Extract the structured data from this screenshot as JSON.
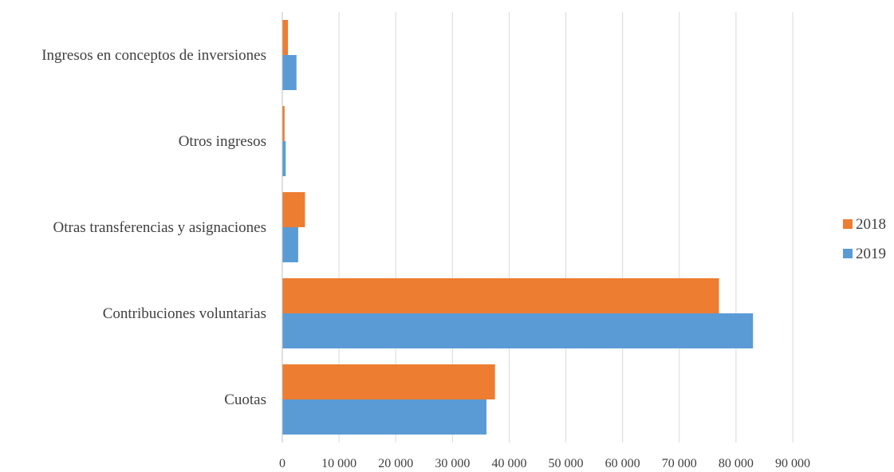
{
  "chart_data": {
    "type": "bar",
    "orientation": "horizontal",
    "title": "",
    "xlabel": "",
    "ylabel": "",
    "categories": [
      "Ingresos en conceptos de inversiones",
      "Otros ingresos",
      "Otras transferencias y asignaciones",
      "Contribuciones voluntarias",
      "Cuotas"
    ],
    "series": [
      {
        "name": "2018",
        "color": "#ED7D31",
        "values": [
          1000,
          400,
          4000,
          77000,
          37500
        ]
      },
      {
        "name": "2019",
        "color": "#5B9BD5",
        "values": [
          2500,
          600,
          2800,
          83000,
          36000
        ]
      }
    ],
    "xlim": [
      0,
      90000
    ],
    "x_ticks": [
      0,
      10000,
      20000,
      30000,
      40000,
      50000,
      60000,
      70000,
      80000,
      90000
    ],
    "x_tick_labels": [
      "0",
      "10 000",
      "20 000",
      "30 000",
      "40 000",
      "50 000",
      "60 000",
      "70 000",
      "80 000",
      "90 000"
    ],
    "grid": "vertical",
    "legend_position": "right",
    "legend_entries": [
      "2018",
      "2019"
    ]
  }
}
